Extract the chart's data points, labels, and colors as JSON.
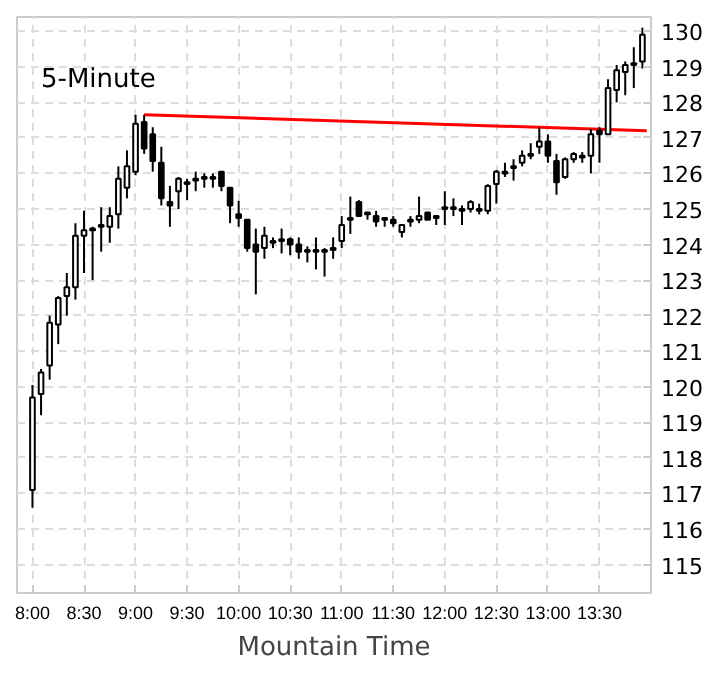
{
  "chart_data": {
    "type": "candlestick",
    "title": "5-Minute",
    "xlabel": "Mountain Time",
    "x": [
      8.0,
      8.0833,
      8.1667,
      8.25,
      8.3333,
      8.4167,
      8.5,
      8.5833,
      8.6667,
      8.75,
      8.8333,
      8.9167,
      9.0,
      9.0833,
      9.1667,
      9.25,
      9.3333,
      9.4167,
      9.5,
      9.5833,
      9.6667,
      9.75,
      9.8333,
      9.9167,
      10.0,
      10.0833,
      10.1667,
      10.25,
      10.3333,
      10.4167,
      10.5,
      10.5833,
      10.6667,
      10.75,
      10.8333,
      10.9167,
      11.0,
      11.0833,
      11.1667,
      11.25,
      11.3333,
      11.4167,
      11.5,
      11.5833,
      11.6667,
      11.75,
      11.8333,
      11.9167,
      12.0,
      12.0833,
      12.1667,
      12.25,
      12.3333,
      12.4167,
      12.5,
      12.5833,
      12.6667,
      12.75,
      12.8333,
      12.9167,
      13.0,
      13.0833,
      13.1667,
      13.25,
      13.3333,
      13.4167,
      13.5,
      13.5833,
      13.6667,
      13.75,
      13.8333,
      13.9167
    ],
    "ohlc": [
      [
        117.1,
        120.05,
        116.6,
        119.7
      ],
      [
        119.8,
        120.5,
        119.2,
        120.4
      ],
      [
        120.6,
        122.0,
        120.2,
        121.8
      ],
      [
        121.75,
        122.55,
        121.2,
        122.5
      ],
      [
        122.55,
        123.2,
        122.0,
        122.8
      ],
      [
        122.8,
        124.6,
        122.45,
        124.25
      ],
      [
        124.25,
        124.95,
        123.2,
        124.4
      ],
      [
        124.4,
        124.5,
        123.0,
        124.45
      ],
      [
        124.5,
        125.05,
        123.8,
        124.55
      ],
      [
        124.5,
        125.05,
        124.05,
        124.8
      ],
      [
        124.85,
        126.2,
        124.45,
        125.85
      ],
      [
        125.6,
        126.65,
        125.3,
        126.2
      ],
      [
        126.05,
        127.65,
        125.95,
        127.4
      ],
      [
        127.45,
        127.65,
        126.55,
        126.7
      ],
      [
        127.1,
        127.3,
        126.05,
        126.35
      ],
      [
        126.3,
        126.75,
        125.1,
        125.3
      ],
      [
        125.2,
        125.65,
        124.5,
        125.1
      ],
      [
        125.5,
        125.9,
        125.0,
        125.85
      ],
      [
        125.7,
        125.85,
        125.25,
        125.75
      ],
      [
        125.8,
        126.05,
        125.5,
        125.85
      ],
      [
        125.85,
        126.0,
        125.6,
        125.9
      ],
      [
        125.85,
        126.0,
        125.6,
        125.9
      ],
      [
        126.05,
        126.05,
        125.5,
        125.65
      ],
      [
        125.6,
        125.6,
        124.6,
        125.1
      ],
      [
        124.85,
        125.23,
        124.5,
        124.75
      ],
      [
        124.7,
        124.7,
        123.8,
        123.9
      ],
      [
        124.0,
        124.45,
        122.6,
        123.8
      ],
      [
        123.9,
        124.5,
        123.6,
        124.25
      ],
      [
        124.05,
        124.2,
        123.9,
        124.1
      ],
      [
        124.1,
        124.45,
        123.75,
        124.15
      ],
      [
        124.15,
        124.2,
        123.7,
        124.0
      ],
      [
        124.0,
        124.2,
        123.6,
        123.8
      ],
      [
        123.8,
        123.95,
        123.5,
        123.85
      ],
      [
        123.85,
        124.2,
        123.3,
        123.8
      ],
      [
        123.8,
        123.9,
        123.1,
        123.85
      ],
      [
        123.85,
        124.2,
        123.6,
        123.9
      ],
      [
        124.1,
        124.8,
        123.9,
        124.55
      ],
      [
        124.7,
        125.35,
        124.3,
        124.75
      ],
      [
        125.2,
        125.25,
        124.8,
        124.8
      ],
      [
        124.85,
        124.9,
        124.7,
        124.9
      ],
      [
        124.8,
        124.95,
        124.5,
        124.65
      ],
      [
        124.7,
        124.75,
        124.5,
        124.75
      ],
      [
        124.7,
        124.8,
        124.5,
        124.6
      ],
      [
        124.35,
        124.55,
        124.2,
        124.55
      ],
      [
        124.65,
        124.8,
        124.5,
        124.7
      ],
      [
        124.7,
        125.35,
        124.6,
        124.8
      ],
      [
        124.9,
        124.9,
        124.7,
        124.7
      ],
      [
        124.75,
        124.8,
        124.55,
        124.8
      ],
      [
        125.0,
        125.5,
        124.55,
        125.05
      ],
      [
        125.0,
        125.3,
        124.8,
        125.05
      ],
      [
        124.95,
        125.1,
        124.55,
        125.0
      ],
      [
        125.0,
        125.25,
        124.9,
        125.2
      ],
      [
        124.95,
        125.15,
        124.85,
        125.0
      ],
      [
        124.95,
        125.7,
        124.85,
        125.65
      ],
      [
        125.7,
        126.1,
        125.15,
        126.05
      ],
      [
        126.0,
        126.3,
        125.9,
        126.05
      ],
      [
        126.15,
        126.4,
        125.8,
        126.2
      ],
      [
        126.3,
        126.65,
        126.2,
        126.5
      ],
      [
        126.5,
        126.85,
        126.4,
        126.55
      ],
      [
        126.75,
        127.3,
        126.55,
        126.9
      ],
      [
        126.9,
        127.1,
        126.3,
        126.5
      ],
      [
        126.35,
        126.55,
        125.4,
        125.75
      ],
      [
        125.9,
        126.45,
        125.85,
        126.4
      ],
      [
        126.4,
        126.6,
        126.3,
        126.55
      ],
      [
        126.45,
        126.6,
        126.3,
        126.5
      ],
      [
        126.5,
        127.25,
        126.0,
        127.1
      ],
      [
        127.2,
        127.3,
        126.3,
        127.1
      ],
      [
        127.1,
        128.65,
        127.1,
        128.4
      ],
      [
        128.35,
        129.05,
        128.0,
        128.9
      ],
      [
        128.85,
        129.15,
        128.2,
        129.05
      ],
      [
        129.05,
        129.55,
        128.4,
        129.1
      ],
      [
        129.15,
        130.1,
        128.95,
        129.9
      ]
    ],
    "series": [
      {
        "type": "line",
        "x": [
          9.0833,
          13.9583
        ],
        "values": [
          127.65,
          127.2
        ],
        "color": "#ff0000"
      }
    ],
    "xlim": [
      7.85,
      14.0
    ],
    "ylim": [
      114.2,
      130.4
    ],
    "xticks": [
      {
        "value": 8.0,
        "label": "8:00"
      },
      {
        "value": 8.5,
        "label": "8:30"
      },
      {
        "value": 9.0,
        "label": "9:00"
      },
      {
        "value": 9.5,
        "label": "9:30"
      },
      {
        "value": 10.0,
        "label": "10:00"
      },
      {
        "value": 10.5,
        "label": "10:30"
      },
      {
        "value": 11.0,
        "label": "11:00"
      },
      {
        "value": 11.5,
        "label": "11:30"
      },
      {
        "value": 12.0,
        "label": "12:00"
      },
      {
        "value": 12.5,
        "label": "12:30"
      },
      {
        "value": 13.0,
        "label": "13:00"
      },
      {
        "value": 13.5,
        "label": "13:30"
      }
    ],
    "yticks": [
      115,
      116,
      117,
      118,
      119,
      120,
      121,
      122,
      123,
      124,
      125,
      126,
      127,
      128,
      129,
      130
    ],
    "grid": true
  }
}
